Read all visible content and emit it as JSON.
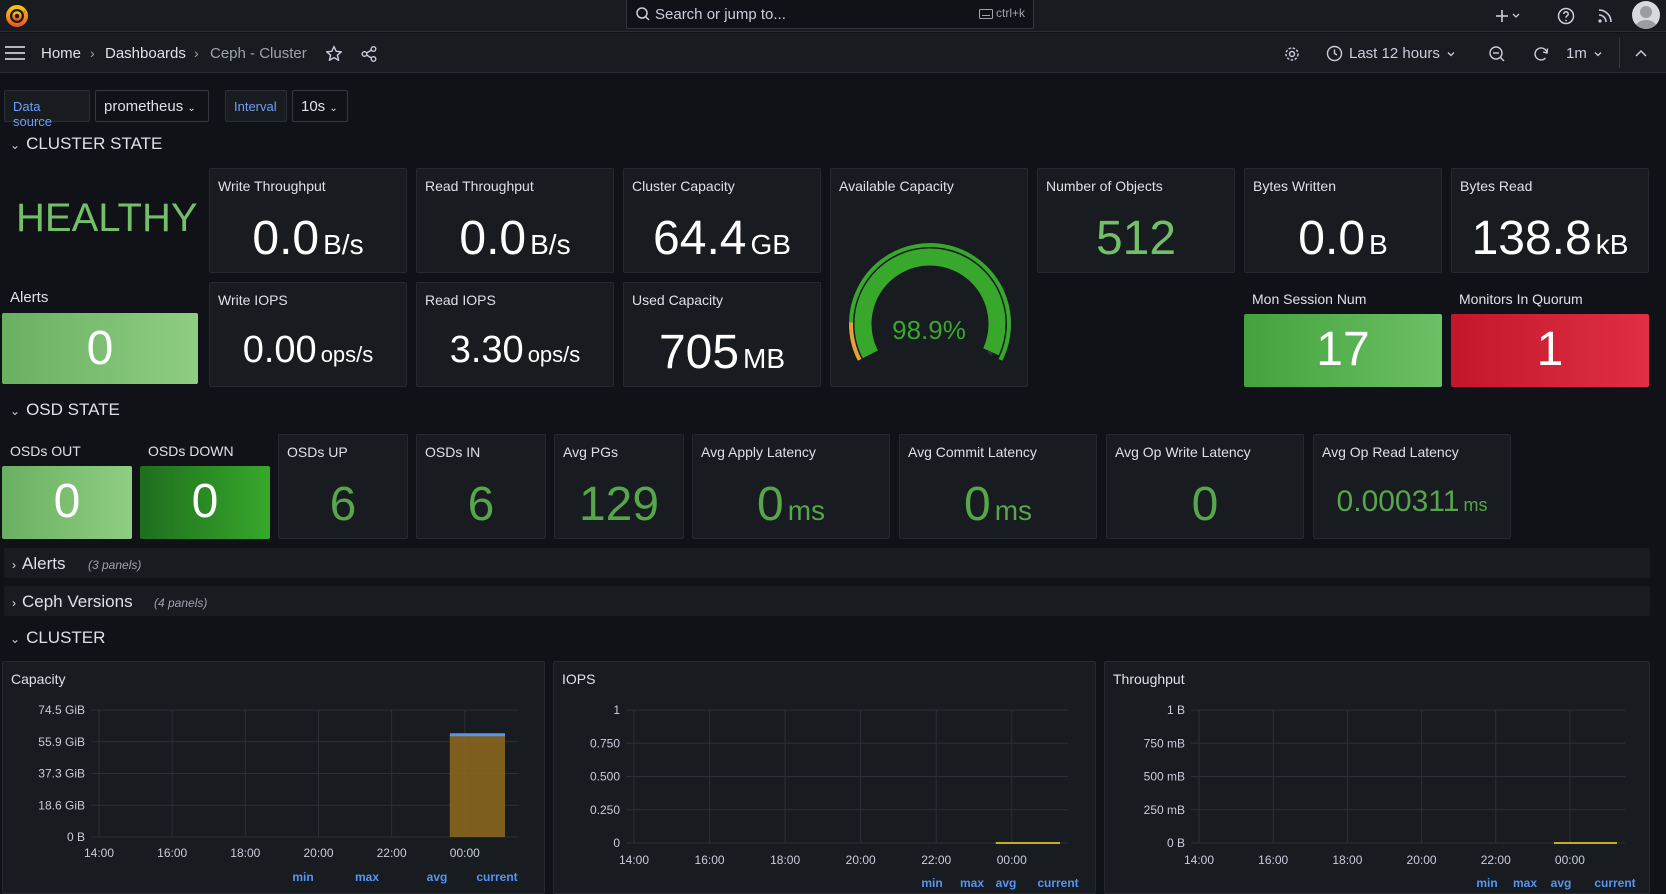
{
  "topbar": {
    "search_placeholder": "Search or jump to...",
    "search_shortcut": "ctrl+k"
  },
  "nav": {
    "breadcrumb": [
      "Home",
      "Dashboards",
      "Ceph - Cluster"
    ],
    "time_range": "Last 12 hours",
    "refresh_interval": "1m"
  },
  "variables": {
    "datasource_label": "Data source",
    "datasource_value": "prometheus",
    "interval_label": "Interval",
    "interval_value": "10s"
  },
  "rows": {
    "cluster_state": "CLUSTER STATE",
    "osd_state": "OSD STATE",
    "alerts": "Alerts",
    "alerts_count": "(3 panels)",
    "ceph_versions": "Ceph Versions",
    "ceph_versions_count": "(4 panels)",
    "cluster": "CLUSTER"
  },
  "cluster_state": {
    "health": "HEALTHY",
    "alerts_title": "Alerts",
    "alerts_value": "0",
    "write_throughput": {
      "title": "Write Throughput",
      "value": "0.0",
      "unit": "B/s"
    },
    "read_throughput": {
      "title": "Read Throughput",
      "value": "0.0",
      "unit": "B/s"
    },
    "cluster_capacity": {
      "title": "Cluster Capacity",
      "value": "64.4",
      "unit": "GB"
    },
    "available_capacity": {
      "title": "Available Capacity",
      "value": "98.9%",
      "percent": 98.9
    },
    "number_of_objects": {
      "title": "Number of Objects",
      "value": "512"
    },
    "bytes_written": {
      "title": "Bytes Written",
      "value": "0.0",
      "unit": "B"
    },
    "bytes_read": {
      "title": "Bytes Read",
      "value": "138.8",
      "unit": "kB"
    },
    "write_iops": {
      "title": "Write IOPS",
      "value": "0.00",
      "unit": "ops/s"
    },
    "read_iops": {
      "title": "Read IOPS",
      "value": "3.30",
      "unit": "ops/s"
    },
    "used_capacity": {
      "title": "Used Capacity",
      "value": "705",
      "unit": "MB"
    },
    "mon_session_num": {
      "title": "Mon Session Num",
      "value": "17"
    },
    "monitors_in_quorum": {
      "title": "Monitors In Quorum",
      "value": "1"
    }
  },
  "osd_state": {
    "osds_out": {
      "title": "OSDs OUT",
      "value": "0"
    },
    "osds_down": {
      "title": "OSDs DOWN",
      "value": "0"
    },
    "osds_up": {
      "title": "OSDs UP",
      "value": "6"
    },
    "osds_in": {
      "title": "OSDs IN",
      "value": "6"
    },
    "avg_pgs": {
      "title": "Avg PGs",
      "value": "129"
    },
    "avg_apply_latency": {
      "title": "Avg Apply Latency",
      "value": "0",
      "unit": "ms"
    },
    "avg_commit_latency": {
      "title": "Avg Commit Latency",
      "value": "0",
      "unit": "ms"
    },
    "avg_op_write_latency": {
      "title": "Avg Op Write Latency",
      "value": "0"
    },
    "avg_op_read_latency": {
      "title": "Avg Op Read Latency",
      "value": "0.000311",
      "unit": "ms"
    }
  },
  "colors": {
    "bg": "#111217",
    "panel": "#181b1f",
    "green": "#73bf69",
    "dark_green": "#37872d",
    "red": "#e02f44",
    "blue_text": "#6e9fff"
  },
  "chart_data": [
    {
      "type": "area",
      "title": "Capacity",
      "x": [
        "14:00",
        "16:00",
        "18:00",
        "20:00",
        "22:00",
        "00:00"
      ],
      "yticks": [
        "74.5 GiB",
        "55.9 GiB",
        "37.3 GiB",
        "18.6 GiB",
        "0 B"
      ],
      "ylim": [
        0,
        74.5
      ],
      "yunit": "GiB",
      "series": [
        {
          "color": "#5794f2",
          "values": [
            null,
            null,
            null,
            null,
            null,
            60.0
          ]
        },
        {
          "color": "#8f6a1f",
          "values": [
            null,
            null,
            null,
            null,
            null,
            59.3
          ]
        }
      ],
      "legend": [
        "min",
        "max",
        "avg",
        "current"
      ]
    },
    {
      "type": "line",
      "title": "IOPS",
      "x": [
        "14:00",
        "16:00",
        "18:00",
        "20:00",
        "22:00",
        "00:00"
      ],
      "yticks": [
        "1",
        "0.750",
        "0.500",
        "0.250",
        "0"
      ],
      "ylim": [
        0,
        1
      ],
      "series": [
        {
          "color": "#fade2a",
          "values": [
            null,
            null,
            null,
            null,
            null,
            0
          ]
        }
      ],
      "legend": [
        "min",
        "max",
        "avg",
        "current"
      ]
    },
    {
      "type": "line",
      "title": "Throughput",
      "x": [
        "14:00",
        "16:00",
        "18:00",
        "20:00",
        "22:00",
        "00:00"
      ],
      "yticks": [
        "1 B",
        "750 mB",
        "500 mB",
        "250 mB",
        "0 B"
      ],
      "ylim": [
        0,
        1
      ],
      "yunit": "B",
      "series": [
        {
          "color": "#fade2a",
          "values": [
            null,
            null,
            null,
            null,
            null,
            0
          ]
        }
      ],
      "legend": [
        "min",
        "max",
        "avg",
        "current"
      ]
    }
  ]
}
